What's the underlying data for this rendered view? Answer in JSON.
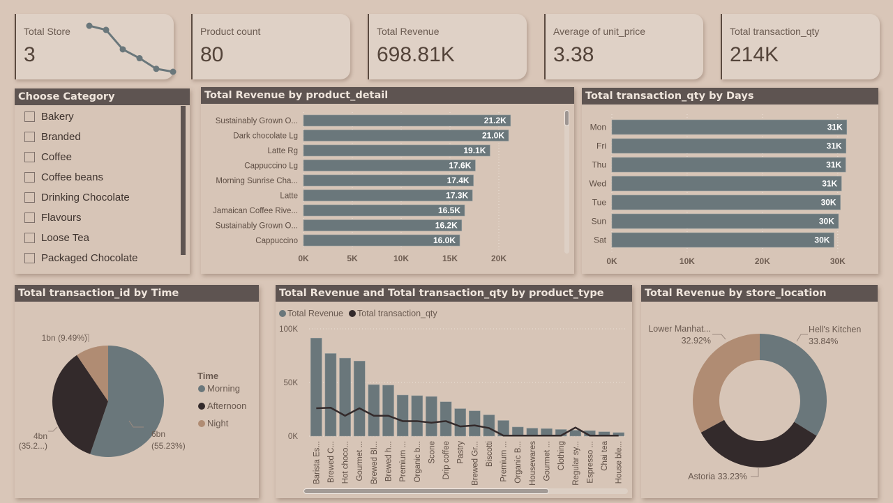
{
  "kpis": [
    {
      "label": "Total Store",
      "value": "3"
    },
    {
      "label": "Product count",
      "value": "80"
    },
    {
      "label": "Total Revenue",
      "value": "698.81K"
    },
    {
      "label": "Average of unit_price",
      "value": "3.38"
    },
    {
      "label": "Total transaction_qty",
      "value": "214K"
    }
  ],
  "sparkline": {
    "values": [
      100,
      93,
      60,
      45,
      27,
      22
    ]
  },
  "slicer": {
    "title": "Choose Category",
    "items": [
      {
        "label": "Bakery",
        "checked": false
      },
      {
        "label": "Branded",
        "checked": false
      },
      {
        "label": "Coffee",
        "checked": false
      },
      {
        "label": "Coffee beans",
        "checked": false
      },
      {
        "label": "Drinking Chocolate",
        "checked": false
      },
      {
        "label": "Flavours",
        "checked": false
      },
      {
        "label": "Loose Tea",
        "checked": false
      },
      {
        "label": "Packaged Chocolate",
        "checked": false
      }
    ]
  },
  "colors": {
    "slate": "#6a777b",
    "dark": "#332a2b",
    "tan": "#b08c73",
    "title_bg": "#5e5451",
    "panel_bg": "#d7c5b7",
    "page_bg": "#d9c6b8"
  },
  "chart_data": [
    {
      "id": "revenue_by_product_detail",
      "type": "bar",
      "orientation": "horizontal",
      "title": "Total Revenue by product_detail",
      "categories": [
        "Sustainably Grown O...",
        "Dark chocolate Lg",
        "Latte Rg",
        "Cappuccino Lg",
        "Morning Sunrise Cha...",
        "Latte",
        "Jamaican Coffee Rive...",
        "Sustainably Grown O...",
        "Cappuccino"
      ],
      "values": [
        21200,
        21000,
        19100,
        17600,
        17400,
        17300,
        16500,
        16200,
        16000
      ],
      "data_labels": [
        "21.2K",
        "21.0K",
        "19.1K",
        "17.6K",
        "17.4K",
        "17.3K",
        "16.5K",
        "16.2K",
        "16.0K"
      ],
      "xticks": [
        "0K",
        "5K",
        "10K",
        "15K",
        "20K"
      ],
      "xlim": [
        0,
        25000
      ],
      "grid": true
    },
    {
      "id": "qty_by_days",
      "type": "bar",
      "orientation": "horizontal",
      "title": "Total transaction_qty by Days",
      "categories": [
        "Mon",
        "Fri",
        "Thu",
        "Wed",
        "Tue",
        "Sun",
        "Sat"
      ],
      "values": [
        31200,
        31100,
        31050,
        30500,
        30350,
        30100,
        29500
      ],
      "data_labels": [
        "31K",
        "31K",
        "31K",
        "31K",
        "30K",
        "30K",
        "30K"
      ],
      "xticks": [
        "0K",
        "10K",
        "20K",
        "30K"
      ],
      "xlim": [
        0,
        34000
      ],
      "grid": true
    },
    {
      "id": "transactions_by_time",
      "type": "pie",
      "title": "Total transaction_id by Time",
      "legend_title": "Time",
      "legend_position": "right",
      "slices": [
        {
          "label": "Morning",
          "value": 55.23,
          "data_label": "6bn",
          "pct_label": "(55.23%)"
        },
        {
          "label": "Afternoon",
          "value": 35.28,
          "data_label": "4bn",
          "pct_label": "(35.2...)"
        },
        {
          "label": "Night",
          "value": 9.49,
          "data_label": "1bn",
          "pct_label": "(9.49%)"
        }
      ]
    },
    {
      "id": "revenue_qty_by_product_type",
      "type": "bar",
      "title": "Total Revenue and Total transaction_qty by product_type",
      "legend_position": "top-left",
      "categories": [
        "Barista Es...",
        "Brewed C...",
        "Hot choco...",
        "Gourmet ...",
        "Brewed Bl...",
        "Brewed h...",
        "Premium ...",
        "Organic b...",
        "Scone",
        "Drip coffee",
        "Pastry",
        "Brewed Gr...",
        "Biscotti",
        "Premium ...",
        "Organic B...",
        "Housewares",
        "Gourmet ...",
        "Clothing",
        "Regular sy...",
        "Espresso ...",
        "Chai tea",
        "House ble..."
      ],
      "series": [
        {
          "name": "Total Revenue",
          "type": "bar",
          "values": [
            91400,
            77000,
            72700,
            70000,
            48000,
            47500,
            38300,
            37700,
            36900,
            32000,
            25600,
            23500,
            19800,
            14600,
            8500,
            7400,
            7000,
            6200,
            5500,
            5100,
            4100,
            3300
          ]
        },
        {
          "name": "Total transaction_qty",
          "type": "line",
          "values": [
            26000,
            26500,
            19000,
            26000,
            19000,
            19000,
            14000,
            14000,
            12500,
            14000,
            9000,
            10000,
            7500,
            500,
            500,
            500,
            500,
            500,
            8000,
            500,
            500,
            500
          ]
        }
      ],
      "yticks": [
        "0K",
        "50K",
        "100K"
      ],
      "ylim": [
        0,
        100000
      ],
      "grid": true,
      "scroll_fraction_visible": 0.7
    },
    {
      "id": "revenue_by_store_location",
      "type": "pie",
      "variant": "donut",
      "title": "Total Revenue by store_location",
      "slices": [
        {
          "label": "Hell's Kitchen",
          "value": 33.84,
          "pct_label": "33.84%"
        },
        {
          "label": "Astoria",
          "value": 33.23,
          "pct_label": "33.23%"
        },
        {
          "label": "Lower Manhat...",
          "value": 32.92,
          "pct_label": "32.92%"
        }
      ]
    }
  ]
}
